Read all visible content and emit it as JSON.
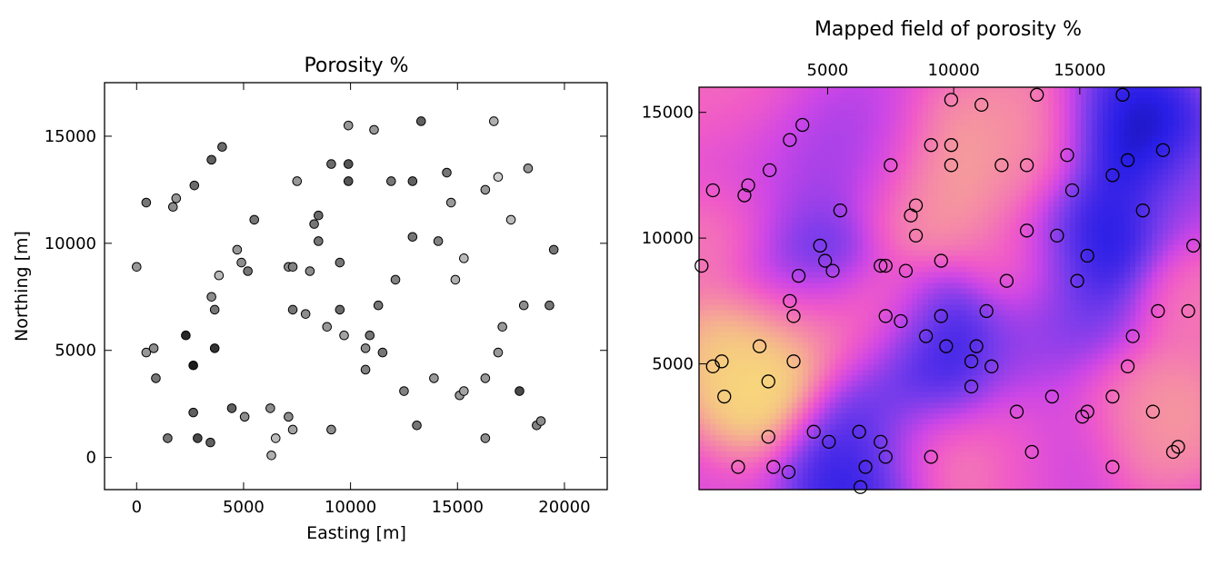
{
  "chart_data": [
    {
      "type": "scatter",
      "title": "Porosity %",
      "xlabel": "Easting [m]",
      "ylabel": "Northing [m]",
      "xlim": [
        -1500,
        22000
      ],
      "ylim": [
        -1500,
        17500
      ],
      "xticks": [
        0,
        5000,
        10000,
        15000,
        20000
      ],
      "yticks": [
        0,
        5000,
        10000,
        15000
      ],
      "marker_colors": {
        "light": "#f2f2f2",
        "dark": "#111111",
        "edge": "#000000"
      },
      "grid": false,
      "note_values": "point color encodes porosity (0 = dark, 1 = light)",
      "points": [
        {
          "x": 0,
          "y": 8900,
          "v": 0.6
        },
        {
          "x": 450,
          "y": 4900,
          "v": 0.6
        },
        {
          "x": 800,
          "y": 5100,
          "v": 0.55
        },
        {
          "x": 900,
          "y": 3700,
          "v": 0.45
        },
        {
          "x": 450,
          "y": 11900,
          "v": 0.45
        },
        {
          "x": 1700,
          "y": 11700,
          "v": 0.55
        },
        {
          "x": 1850,
          "y": 12100,
          "v": 0.6
        },
        {
          "x": 2700,
          "y": 12700,
          "v": 0.4
        },
        {
          "x": 3500,
          "y": 13900,
          "v": 0.35
        },
        {
          "x": 4000,
          "y": 14500,
          "v": 0.4
        },
        {
          "x": 2300,
          "y": 5700,
          "v": 0.1
        },
        {
          "x": 2650,
          "y": 4300,
          "v": 0.05
        },
        {
          "x": 3650,
          "y": 5100,
          "v": 0.15
        },
        {
          "x": 3500,
          "y": 7500,
          "v": 0.55
        },
        {
          "x": 3650,
          "y": 6900,
          "v": 0.45
        },
        {
          "x": 3850,
          "y": 8500,
          "v": 0.75
        },
        {
          "x": 4700,
          "y": 9700,
          "v": 0.6
        },
        {
          "x": 4900,
          "y": 9100,
          "v": 0.55
        },
        {
          "x": 5200,
          "y": 8700,
          "v": 0.45
        },
        {
          "x": 5500,
          "y": 11100,
          "v": 0.45
        },
        {
          "x": 1450,
          "y": 900,
          "v": 0.45
        },
        {
          "x": 2650,
          "y": 2100,
          "v": 0.35
        },
        {
          "x": 2850,
          "y": 900,
          "v": 0.25
        },
        {
          "x": 3450,
          "y": 700,
          "v": 0.35
        },
        {
          "x": 4450,
          "y": 2300,
          "v": 0.35
        },
        {
          "x": 5050,
          "y": 1900,
          "v": 0.55
        },
        {
          "x": 6250,
          "y": 2300,
          "v": 0.55
        },
        {
          "x": 6500,
          "y": 900,
          "v": 0.75
        },
        {
          "x": 6300,
          "y": 100,
          "v": 0.7
        },
        {
          "x": 7100,
          "y": 1900,
          "v": 0.55
        },
        {
          "x": 7300,
          "y": 1300,
          "v": 0.65
        },
        {
          "x": 7300,
          "y": 6900,
          "v": 0.45
        },
        {
          "x": 7100,
          "y": 8900,
          "v": 0.55
        },
        {
          "x": 7300,
          "y": 8900,
          "v": 0.5
        },
        {
          "x": 7500,
          "y": 12900,
          "v": 0.6
        },
        {
          "x": 7900,
          "y": 6700,
          "v": 0.55
        },
        {
          "x": 8100,
          "y": 8700,
          "v": 0.55
        },
        {
          "x": 8300,
          "y": 10900,
          "v": 0.45
        },
        {
          "x": 8500,
          "y": 11300,
          "v": 0.4
        },
        {
          "x": 8500,
          "y": 10100,
          "v": 0.45
        },
        {
          "x": 8900,
          "y": 6100,
          "v": 0.6
        },
        {
          "x": 9100,
          "y": 13700,
          "v": 0.4
        },
        {
          "x": 9100,
          "y": 1300,
          "v": 0.55
        },
        {
          "x": 9500,
          "y": 9100,
          "v": 0.45
        },
        {
          "x": 9500,
          "y": 6900,
          "v": 0.4
        },
        {
          "x": 9700,
          "y": 5700,
          "v": 0.65
        },
        {
          "x": 9900,
          "y": 15500,
          "v": 0.6
        },
        {
          "x": 9900,
          "y": 13700,
          "v": 0.3
        },
        {
          "x": 9900,
          "y": 12900,
          "v": 0.3
        },
        {
          "x": 10700,
          "y": 5100,
          "v": 0.55
        },
        {
          "x": 10700,
          "y": 4100,
          "v": 0.5
        },
        {
          "x": 10900,
          "y": 5700,
          "v": 0.45
        },
        {
          "x": 11100,
          "y": 15300,
          "v": 0.6
        },
        {
          "x": 11300,
          "y": 7100,
          "v": 0.45
        },
        {
          "x": 11500,
          "y": 4900,
          "v": 0.45
        },
        {
          "x": 11900,
          "y": 12900,
          "v": 0.45
        },
        {
          "x": 12100,
          "y": 8300,
          "v": 0.5
        },
        {
          "x": 12500,
          "y": 3100,
          "v": 0.5
        },
        {
          "x": 12900,
          "y": 12900,
          "v": 0.35
        },
        {
          "x": 12900,
          "y": 10300,
          "v": 0.45
        },
        {
          "x": 13100,
          "y": 1500,
          "v": 0.45
        },
        {
          "x": 13300,
          "y": 15700,
          "v": 0.35
        },
        {
          "x": 13900,
          "y": 3700,
          "v": 0.6
        },
        {
          "x": 14100,
          "y": 10100,
          "v": 0.5
        },
        {
          "x": 14500,
          "y": 13300,
          "v": 0.45
        },
        {
          "x": 14700,
          "y": 11900,
          "v": 0.6
        },
        {
          "x": 14900,
          "y": 8300,
          "v": 0.7
        },
        {
          "x": 15100,
          "y": 2900,
          "v": 0.6
        },
        {
          "x": 15300,
          "y": 3100,
          "v": 0.65
        },
        {
          "x": 15300,
          "y": 9300,
          "v": 0.75
        },
        {
          "x": 16300,
          "y": 12500,
          "v": 0.6
        },
        {
          "x": 16300,
          "y": 3700,
          "v": 0.6
        },
        {
          "x": 16300,
          "y": 900,
          "v": 0.55
        },
        {
          "x": 16700,
          "y": 15700,
          "v": 0.7
        },
        {
          "x": 16900,
          "y": 13100,
          "v": 0.85
        },
        {
          "x": 16900,
          "y": 4900,
          "v": 0.6
        },
        {
          "x": 17100,
          "y": 6100,
          "v": 0.6
        },
        {
          "x": 17500,
          "y": 11100,
          "v": 0.75
        },
        {
          "x": 17900,
          "y": 3100,
          "v": 0.25
        },
        {
          "x": 18100,
          "y": 7100,
          "v": 0.55
        },
        {
          "x": 18300,
          "y": 13500,
          "v": 0.6
        },
        {
          "x": 18700,
          "y": 1500,
          "v": 0.5
        },
        {
          "x": 18900,
          "y": 1700,
          "v": 0.55
        },
        {
          "x": 19300,
          "y": 7100,
          "v": 0.45
        },
        {
          "x": 19500,
          "y": 9700,
          "v": 0.45
        }
      ]
    },
    {
      "type": "heatmap",
      "title": "Mapped field of porosity %",
      "xticks": [
        5000,
        10000,
        15000
      ],
      "yticks": [
        5000,
        10000,
        15000
      ],
      "xlim": [
        -100,
        19800
      ],
      "ylim": [
        0,
        16000
      ],
      "colormap": "spring/plasma-like: dark blue (low) → blue → violet → magenta → pink → yellow (high)",
      "grid": false,
      "low_centers": [
        {
          "x": 17500,
          "y": 13600,
          "v": 0.0
        },
        {
          "x": 16300,
          "y": 14500,
          "v": 0.15
        },
        {
          "x": 15800,
          "y": 10800,
          "v": 0.15
        },
        {
          "x": 15400,
          "y": 9400,
          "v": 0.05
        },
        {
          "x": 15000,
          "y": 6600,
          "v": 0.3
        },
        {
          "x": 8800,
          "y": 4600,
          "v": 0.15
        },
        {
          "x": 9900,
          "y": 5700,
          "v": 0.15
        },
        {
          "x": 3900,
          "y": 9000,
          "v": 0.15
        },
        {
          "x": 6300,
          "y": 600,
          "v": 0.1
        },
        {
          "x": 6600,
          "y": 2300,
          "v": 0.25
        },
        {
          "x": 7000,
          "y": 13400,
          "v": 0.4
        },
        {
          "x": 3900,
          "y": 12200,
          "v": 0.4
        },
        {
          "x": 12700,
          "y": 5200,
          "v": 0.4
        },
        {
          "x": 14300,
          "y": 2200,
          "v": 0.4
        },
        {
          "x": 19000,
          "y": 12000,
          "v": 0.45
        },
        {
          "x": 1500,
          "y": 13000,
          "v": 0.55
        }
      ],
      "high_centers": [
        {
          "x": 2400,
          "y": 4300,
          "v": 1.0
        },
        {
          "x": 1500,
          "y": 5500,
          "v": 0.9
        },
        {
          "x": 3700,
          "y": 6800,
          "v": 0.82
        },
        {
          "x": 9800,
          "y": 13200,
          "v": 0.85
        },
        {
          "x": 9000,
          "y": 11600,
          "v": 0.8
        },
        {
          "x": 13200,
          "y": 14500,
          "v": 0.8
        },
        {
          "x": 12700,
          "y": 12900,
          "v": 0.75
        },
        {
          "x": 18300,
          "y": 3000,
          "v": 0.82
        },
        {
          "x": 16600,
          "y": 3200,
          "v": 0.75
        },
        {
          "x": 13000,
          "y": 9200,
          "v": 0.72
        },
        {
          "x": 9100,
          "y": 1600,
          "v": 0.78
        },
        {
          "x": 12800,
          "y": 2100,
          "v": 0.72
        },
        {
          "x": 1200,
          "y": 10000,
          "v": 0.75
        },
        {
          "x": 19300,
          "y": 7500,
          "v": 0.72
        },
        {
          "x": 7000,
          "y": 6500,
          "v": 0.7
        },
        {
          "x": 500,
          "y": 15500,
          "v": 0.68
        }
      ],
      "overlay_points": "same locations as the scatter plot, drawn as hollow black circles"
    }
  ]
}
